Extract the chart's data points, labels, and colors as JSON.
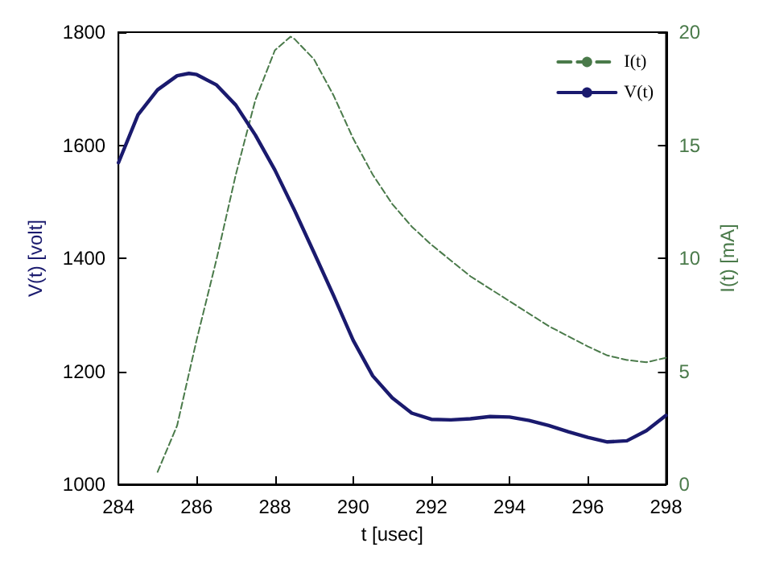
{
  "chart_data": {
    "type": "line",
    "xlabel": "t [usec]",
    "ylabel": "V(t) [volt]",
    "y2label": "I(t) [mA]",
    "xlim": [
      284,
      298
    ],
    "xticks": [
      284,
      286,
      288,
      290,
      292,
      294,
      296,
      298
    ],
    "ylim": [
      1000,
      1800
    ],
    "yticks": [
      1000,
      1200,
      1400,
      1600,
      1800
    ],
    "y2lim": [
      0,
      20
    ],
    "y2ticks": [
      0,
      5,
      10,
      15,
      20
    ],
    "grid": false,
    "legend": "top right",
    "marker": "none",
    "series": [
      {
        "name": "I(t)",
        "color": "#4a7a4a",
        "axis": "y2",
        "line_style": "dashed",
        "x": [
          285,
          285.5,
          286,
          286.5,
          287,
          287.5,
          288,
          288.4,
          288.5,
          289,
          289.5,
          290,
          290.5,
          291,
          291.5,
          292,
          293,
          294,
          295,
          296,
          296.5,
          297,
          297.5,
          298
        ],
        "values": [
          0.55,
          2.6,
          6.4,
          9.9,
          13.7,
          17.0,
          19.2,
          19.8,
          19.7,
          18.8,
          17.2,
          15.3,
          13.7,
          12.4,
          11.4,
          10.6,
          9.2,
          8.1,
          7.0,
          6.1,
          5.7,
          5.5,
          5.4,
          5.6
        ]
      },
      {
        "name": "V(t)",
        "color": "#1a1a6e",
        "line_style": "solid",
        "x": [
          284,
          284.5,
          285,
          285.5,
          285.8,
          286,
          286.5,
          287,
          287.5,
          288,
          288.5,
          289,
          289.5,
          290,
          290.5,
          291,
          291.5,
          292,
          292.5,
          293,
          293.5,
          294,
          294.5,
          295,
          295.5,
          296,
          296.5,
          297,
          297.5,
          298
        ],
        "values": [
          1569,
          1654,
          1698,
          1723,
          1727,
          1725,
          1707,
          1671,
          1618,
          1556,
          1485,
          1410,
          1334,
          1255,
          1192,
          1153,
          1126,
          1115,
          1114,
          1116,
          1120,
          1119,
          1113,
          1104,
          1093,
          1083,
          1075,
          1077,
          1095,
          1122
        ]
      }
    ]
  }
}
